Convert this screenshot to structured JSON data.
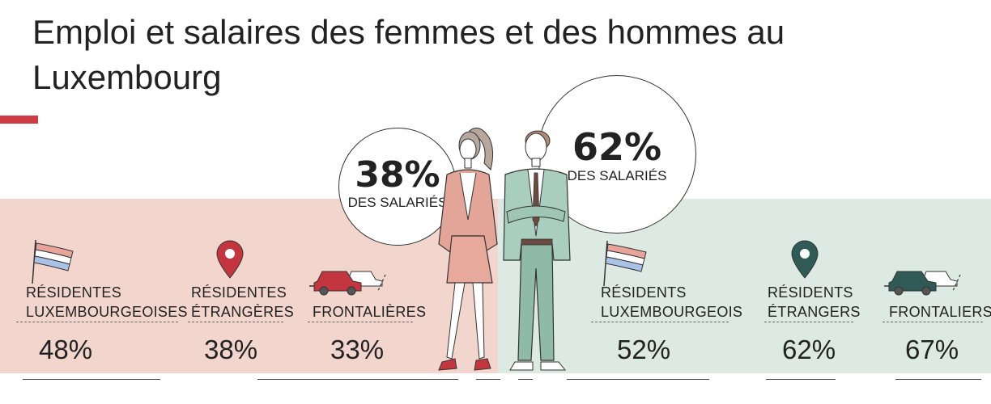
{
  "title": "Emploi et salaires des femmes et des hommes au Luxembourg",
  "women": {
    "share_value": "38%",
    "share_label": "DES SALARIÉS",
    "categories": [
      {
        "label_line1": "RÉSIDENTES",
        "label_line2": "LUXEMBOURGEOISES",
        "value": "48%",
        "icon": "luxembourg-flag-icon"
      },
      {
        "label_line1": "RÉSIDENTES",
        "label_line2": "ÉTRANGÈRES",
        "value": "38%",
        "icon": "location-pin-icon"
      },
      {
        "label_line1": "",
        "label_line2": "FRONTALIÈRES",
        "value": "33%",
        "icon": "cars-icon"
      }
    ]
  },
  "men": {
    "share_value": "62%",
    "share_label": "DES SALARIÉS",
    "categories": [
      {
        "label_line1": "RÉSIDENTS",
        "label_line2": "LUXEMBOURGEOIS",
        "value": "52%",
        "icon": "luxembourg-flag-icon"
      },
      {
        "label_line1": "RÉSIDENTS",
        "label_line2": "ÉTRANGERS",
        "value": "62%",
        "icon": "location-pin-icon"
      },
      {
        "label_line1": "",
        "label_line2": "FRONTALIERS",
        "value": "67%",
        "icon": "cars-icon"
      }
    ]
  },
  "colors": {
    "women_band": "#f2d5cd",
    "men_band": "#dde9e3",
    "women_accent": "#c4363f",
    "men_accent": "#2f5a55",
    "flag_red": "#e8a49a",
    "flag_blue": "#a9c2e6"
  }
}
